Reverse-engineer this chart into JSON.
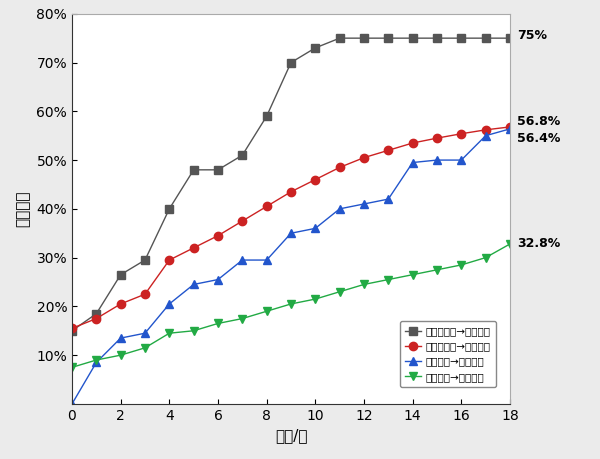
{
  "series": {
    "black_sq": {
      "label": "携带治疗位→实时增伤",
      "color": "#555555",
      "marker": "s",
      "markersize": 6,
      "x": [
        0,
        1,
        2,
        3,
        4,
        5,
        6,
        7,
        8,
        9,
        10,
        11,
        12,
        13,
        14,
        15,
        16,
        17,
        18
      ],
      "y": [
        0.15,
        0.185,
        0.265,
        0.295,
        0.4,
        0.48,
        0.48,
        0.51,
        0.59,
        0.7,
        0.73,
        0.75,
        0.75,
        0.75,
        0.75,
        0.75,
        0.75,
        0.75,
        0.75
      ]
    },
    "red_circle": {
      "label": "携带治疗位→加权增伤",
      "color": "#cc2222",
      "marker": "o",
      "markersize": 6,
      "x": [
        0,
        1,
        2,
        3,
        4,
        5,
        6,
        7,
        8,
        9,
        10,
        11,
        12,
        13,
        14,
        15,
        16,
        17,
        18
      ],
      "y": [
        0.155,
        0.175,
        0.205,
        0.225,
        0.295,
        0.32,
        0.345,
        0.375,
        0.405,
        0.435,
        0.46,
        0.485,
        0.505,
        0.52,
        0.535,
        0.545,
        0.554,
        0.562,
        0.568
      ]
    },
    "blue_tri": {
      "label": "无治疗位→实时增伤",
      "color": "#2255cc",
      "marker": "^",
      "markersize": 6,
      "x": [
        0,
        1,
        2,
        3,
        4,
        5,
        6,
        7,
        8,
        9,
        10,
        11,
        12,
        13,
        14,
        15,
        16,
        17,
        18
      ],
      "y": [
        0.0,
        0.085,
        0.135,
        0.145,
        0.205,
        0.245,
        0.255,
        0.295,
        0.295,
        0.35,
        0.36,
        0.4,
        0.41,
        0.42,
        0.495,
        0.5,
        0.5,
        0.55,
        0.564
      ]
    },
    "green_tri": {
      "label": "无治疗位→加权增伤",
      "color": "#22aa44",
      "marker": "v",
      "markersize": 6,
      "x": [
        0,
        1,
        2,
        3,
        4,
        5,
        6,
        7,
        8,
        9,
        10,
        11,
        12,
        13,
        14,
        15,
        16,
        17,
        18
      ],
      "y": [
        0.075,
        0.09,
        0.1,
        0.115,
        0.145,
        0.15,
        0.165,
        0.175,
        0.19,
        0.205,
        0.215,
        0.23,
        0.245,
        0.255,
        0.265,
        0.275,
        0.285,
        0.3,
        0.328
      ]
    }
  },
  "end_labels": {
    "black_sq": "75%",
    "red_circle": "56.8%",
    "blue_tri": "56.4%",
    "green_tri": "32.8%"
  },
  "xlabel": "时间/秒",
  "ylabel": "增伤收益",
  "xlim": [
    0,
    18
  ],
  "ylim": [
    0,
    0.8
  ],
  "xticks": [
    0,
    2,
    4,
    6,
    8,
    10,
    12,
    14,
    16,
    18
  ],
  "yticks": [
    0.1,
    0.2,
    0.3,
    0.4,
    0.5,
    0.6,
    0.7,
    0.8
  ],
  "bg_color": "#ebebeb",
  "plot_bg": "#ffffff",
  "linewidth": 1.0
}
